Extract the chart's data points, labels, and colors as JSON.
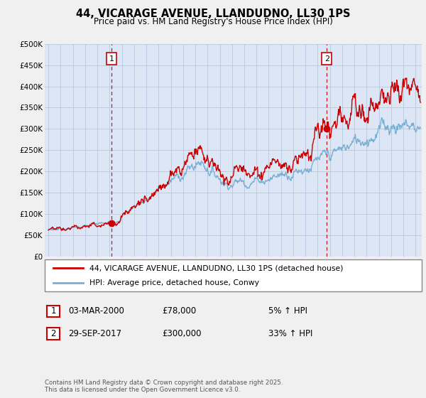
{
  "title": "44, VICARAGE AVENUE, LLANDUDNO, LL30 1PS",
  "subtitle": "Price paid vs. HM Land Registry's House Price Index (HPI)",
  "ylim": [
    0,
    500000
  ],
  "xlim_start": 1994.7,
  "xlim_end": 2025.5,
  "purchase1_date": 2000.17,
  "purchase1_price": 78000,
  "purchase1_label": "1",
  "purchase1_text": "03-MAR-2000",
  "purchase1_amount": "£78,000",
  "purchase1_hpi": "5% ↑ HPI",
  "purchase2_date": 2017.75,
  "purchase2_price": 300000,
  "purchase2_label": "2",
  "purchase2_text": "29-SEP-2017",
  "purchase2_amount": "£300,000",
  "purchase2_hpi": "33% ↑ HPI",
  "legend_line1": "44, VICARAGE AVENUE, LLANDUDNO, LL30 1PS (detached house)",
  "legend_line2": "HPI: Average price, detached house, Conwy",
  "footer": "Contains HM Land Registry data © Crown copyright and database right 2025.\nThis data is licensed under the Open Government Licence v3.0.",
  "line_color_red": "#cc0000",
  "line_color_blue": "#7aafd4",
  "bg_color": "#f0f0f0",
  "plot_bg": "#dce6f5",
  "grid_color": "#b8c8e0"
}
